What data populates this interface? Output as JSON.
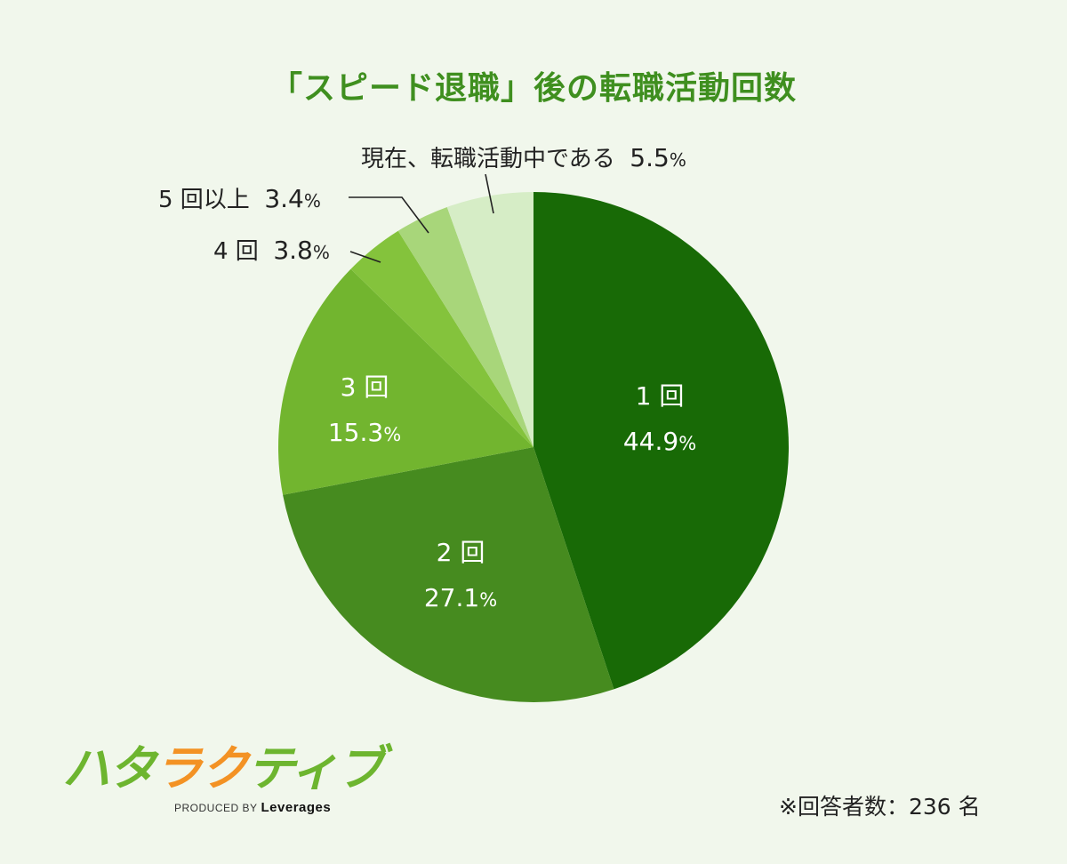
{
  "title": "「スピード退職」後の転職活動回数",
  "chart_data": {
    "type": "pie",
    "title": "「スピード退職」後の転職活動回数",
    "start_angle": "12 o'clock, clockwise",
    "categories": [
      "1回",
      "2回",
      "3回",
      "4回",
      "5回以上",
      "現在、転職活動中である"
    ],
    "values": [
      44.9,
      27.1,
      15.3,
      3.8,
      3.4,
      5.5
    ],
    "unit": "%",
    "colors": [
      "#186a06",
      "#468b1f",
      "#72b52f",
      "#84c33c",
      "#a8d67a",
      "#d6edc6"
    ],
    "note": "※回答者数：236名"
  },
  "labels": {
    "s1": {
      "cat": "1 回",
      "val": "44.9",
      "unit": "%"
    },
    "s2": {
      "cat": "2 回",
      "val": "27.1",
      "unit": "%"
    },
    "s3": {
      "cat": "3 回",
      "val": "15.3",
      "unit": "%"
    },
    "s4": {
      "cat": "4 回",
      "val": "3.8",
      "unit": "%"
    },
    "s5": {
      "cat": "5 回以上",
      "val": "3.4",
      "unit": "%"
    },
    "s6": {
      "cat": "現在、転職活動中である",
      "val": "5.5",
      "unit": "%"
    }
  },
  "logo": {
    "part1": "ハタ",
    "part2": "ラク",
    "part3": "ティブ",
    "produced": "PRODUCED BY",
    "brand": "Leverages"
  },
  "footnote": "※回答者数：236 名"
}
